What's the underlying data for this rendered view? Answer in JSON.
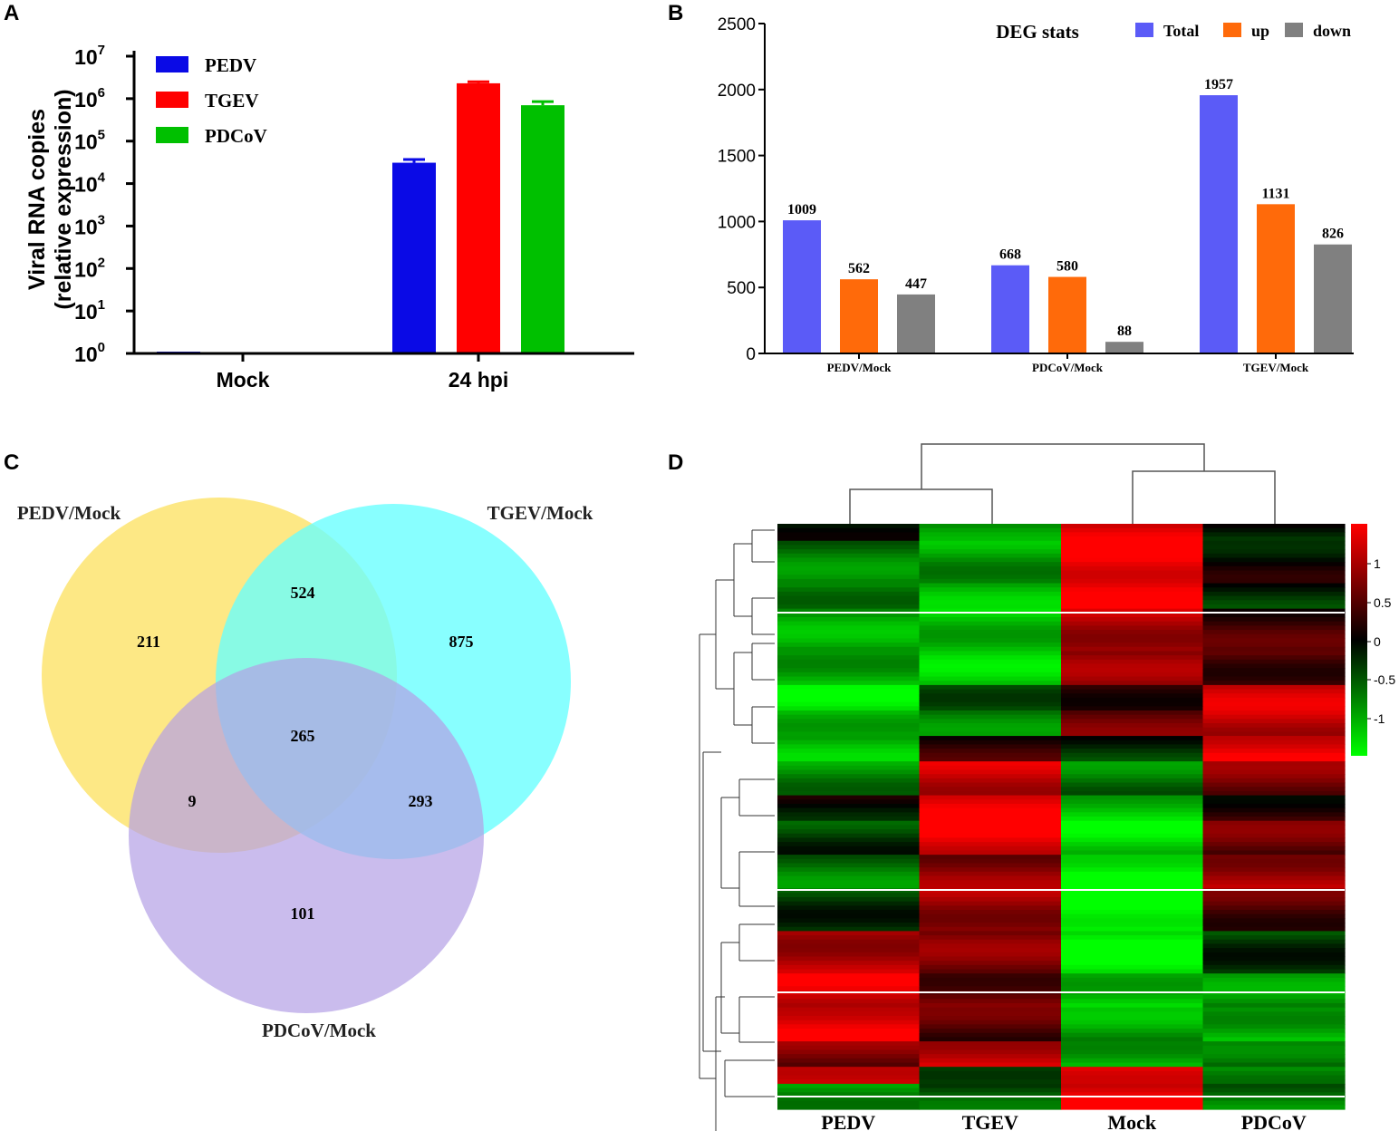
{
  "panels": {
    "a": "A",
    "b": "B",
    "c": "C",
    "d": "D"
  },
  "chart_data": [
    {
      "id": "A",
      "type": "bar",
      "yscale": "log",
      "ylabel": [
        "Viral RNA copies",
        "(relative expression)"
      ],
      "ylim": [
        1,
        10000000
      ],
      "yticks": [
        {
          "base": "10",
          "exp": "0",
          "value": 1
        },
        {
          "base": "10",
          "exp": "1",
          "value": 10
        },
        {
          "base": "10",
          "exp": "2",
          "value": 100
        },
        {
          "base": "10",
          "exp": "3",
          "value": 1000
        },
        {
          "base": "10",
          "exp": "4",
          "value": 10000
        },
        {
          "base": "10",
          "exp": "5",
          "value": 100000
        },
        {
          "base": "10",
          "exp": "6",
          "value": 1000000
        },
        {
          "base": "10",
          "exp": "7",
          "value": 10000000
        }
      ],
      "categories": [
        "Mock",
        "24 hpi"
      ],
      "series": [
        {
          "name": "PEDV",
          "color": "#0a0ae6",
          "values": [
            1.1,
            31000
          ],
          "errors": [
            0,
            6000
          ]
        },
        {
          "name": "TGEV",
          "color": "#ff0000",
          "values": [
            1.05,
            2300000
          ],
          "errors": [
            0,
            200000
          ]
        },
        {
          "name": "PDCoV",
          "color": "#00c000",
          "values": [
            1.05,
            700000
          ],
          "errors": [
            0,
            150000
          ]
        }
      ],
      "legend_position": "top-left"
    },
    {
      "id": "B",
      "type": "bar",
      "title": "DEG stats",
      "ylim": [
        0,
        2500
      ],
      "yticks": [
        0,
        500,
        1000,
        1500,
        2000,
        2500
      ],
      "categories": [
        "PEDV/Mock",
        "PDCoV/Mock",
        "TGEV/Mock"
      ],
      "series": [
        {
          "name": "Total",
          "color": "#5b5bf7",
          "values": [
            1009,
            668,
            1957
          ]
        },
        {
          "name": "up",
          "color": "#ff6a0a",
          "values": [
            562,
            580,
            1131
          ]
        },
        {
          "name": "down",
          "color": "#808080",
          "values": [
            447,
            88,
            826
          ]
        }
      ],
      "legend_position": "top"
    },
    {
      "id": "C",
      "type": "venn",
      "sets": [
        {
          "name": "PEDV/Mock",
          "color": "#fde36a"
        },
        {
          "name": "TGEV/Mock",
          "color": "#66ffff"
        },
        {
          "name": "PDCoV/Mock",
          "color": "#b4a0e6"
        }
      ],
      "regions": {
        "PEDV_only": "211",
        "TGEV_only": "875",
        "PDCoV_only": "101",
        "PEDV_TGEV": "524",
        "PEDV_PDCoV": "9",
        "TGEV_PDCoV": "293",
        "all": "265"
      }
    },
    {
      "id": "D",
      "type": "heatmap",
      "columns": [
        "PEDV",
        "TGEV",
        "Mock",
        "PDCoV"
      ],
      "colorbar": {
        "ticks": [
          "1",
          "0.5",
          "0",
          "-0.5",
          "-1"
        ],
        "high": "#ff0000",
        "mid": "#000000",
        "low": "#00ff00"
      },
      "blocks": [
        {
          "rows": 4,
          "values": [
            -0.2,
            -0.7,
            1.1,
            -0.1
          ]
        },
        {
          "rows": 10,
          "values": [
            -0.6,
            -0.8,
            1.3,
            0.0
          ]
        },
        {
          "rows": 6,
          "values": [
            -0.7,
            -0.9,
            1.3,
            -0.2
          ]
        },
        {
          "rows": 10,
          "values": [
            -0.8,
            -1.0,
            0.9,
            0.3
          ]
        },
        {
          "rows": 8,
          "values": [
            -0.9,
            -1.0,
            0.7,
            0.4
          ]
        },
        {
          "rows": 6,
          "values": [
            -1.1,
            -0.5,
            0.3,
            1.0
          ]
        },
        {
          "rows": 6,
          "values": [
            -1.0,
            -0.6,
            0.5,
            1.0
          ]
        },
        {
          "rows": 6,
          "values": [
            -0.9,
            0.2,
            -0.2,
            1.2
          ]
        },
        {
          "rows": 8,
          "values": [
            -0.7,
            1.0,
            -0.6,
            0.6
          ]
        },
        {
          "rows": 6,
          "values": [
            0.0,
            1.3,
            -1.0,
            0.2
          ]
        },
        {
          "rows": 8,
          "values": [
            -0.3,
            1.2,
            -1.1,
            0.5
          ]
        },
        {
          "rows": 8,
          "values": [
            -0.6,
            0.7,
            -1.3,
            0.8
          ]
        },
        {
          "rows": 10,
          "values": [
            -0.3,
            0.8,
            -1.4,
            0.4
          ]
        },
        {
          "rows": 10,
          "values": [
            0.9,
            0.6,
            -1.2,
            -0.3
          ]
        },
        {
          "rows": 8,
          "values": [
            1.1,
            0.5,
            -1.0,
            -0.7
          ]
        },
        {
          "rows": 8,
          "values": [
            1.2,
            0.4,
            -0.8,
            -0.9
          ]
        },
        {
          "rows": 6,
          "values": [
            0.6,
            1.0,
            -0.9,
            -0.5
          ]
        },
        {
          "rows": 4,
          "values": [
            1.2,
            -0.5,
            1.3,
            -0.8
          ]
        },
        {
          "rows": 6,
          "values": [
            -0.8,
            -0.4,
            1.2,
            -0.6
          ]
        }
      ]
    }
  ]
}
